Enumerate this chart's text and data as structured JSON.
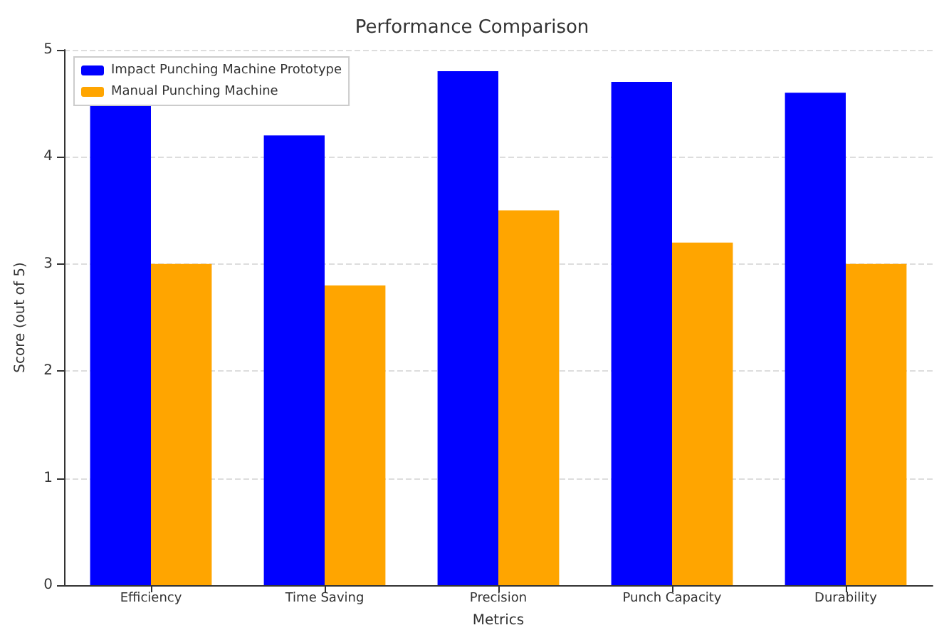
{
  "chart_data": {
    "type": "bar",
    "title": "Performance Comparison",
    "xlabel": "Metrics",
    "ylabel": "Score (out of 5)",
    "categories": [
      "Efficiency",
      "Time Saving",
      "Precision",
      "Punch Capacity",
      "Durability"
    ],
    "series": [
      {
        "name": "Impact Punching Machine Prototype",
        "color": "#0000ff",
        "values": [
          4.5,
          4.2,
          4.8,
          4.7,
          4.6
        ]
      },
      {
        "name": "Manual Punching Machine",
        "color": "#ffa500",
        "values": [
          3.0,
          2.8,
          3.5,
          3.2,
          3.0
        ]
      }
    ],
    "ylim": [
      0,
      5
    ],
    "yticks": [
      0,
      1,
      2,
      3,
      4,
      5
    ],
    "grid": "y",
    "legend": "top left"
  }
}
